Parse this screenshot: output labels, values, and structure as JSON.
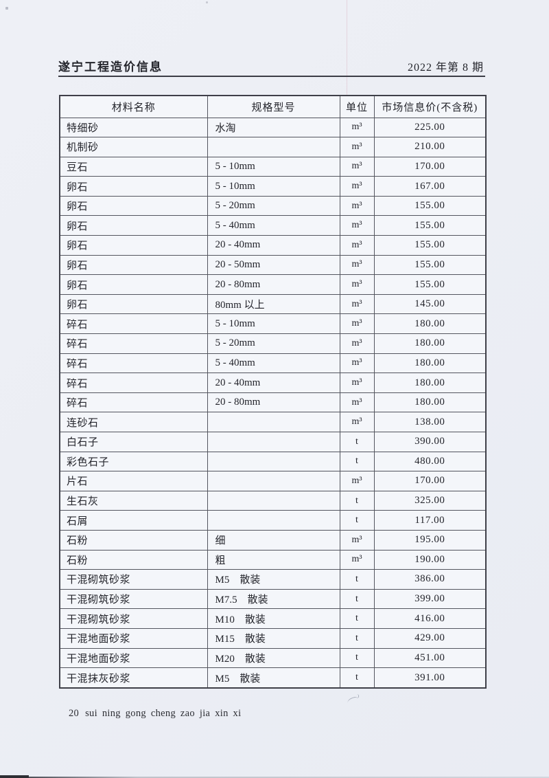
{
  "page": {
    "header_left": "遂宁工程造价信息",
    "header_right": "2022 年第 8 期",
    "page_number": "20",
    "footer_pinyin": "sui ning gong cheng zao jia xin xi"
  },
  "colors": {
    "paper": "#eceef4",
    "ink": "#23242b",
    "table_line": "#53555e"
  },
  "table": {
    "columns": [
      "材料名称",
      "规格型号",
      "单位",
      "市场信息价(不含税)"
    ],
    "rows": [
      {
        "name": "特细砂",
        "spec": "水淘",
        "unit": "m³",
        "price": "225.00"
      },
      {
        "name": "机制砂",
        "spec": "",
        "unit": "m³",
        "price": "210.00"
      },
      {
        "name": "豆石",
        "spec": "5 - 10mm",
        "unit": "m³",
        "price": "170.00"
      },
      {
        "name": "卵石",
        "spec": "5 - 10mm",
        "unit": "m³",
        "price": "167.00"
      },
      {
        "name": "卵石",
        "spec": "5 - 20mm",
        "unit": "m³",
        "price": "155.00"
      },
      {
        "name": "卵石",
        "spec": "5 - 40mm",
        "unit": "m³",
        "price": "155.00"
      },
      {
        "name": "卵石",
        "spec": "20 - 40mm",
        "unit": "m³",
        "price": "155.00"
      },
      {
        "name": "卵石",
        "spec": "20 - 50mm",
        "unit": "m³",
        "price": "155.00"
      },
      {
        "name": "卵石",
        "spec": "20 - 80mm",
        "unit": "m³",
        "price": "155.00"
      },
      {
        "name": "卵石",
        "spec": "80mm 以上",
        "unit": "m³",
        "price": "145.00"
      },
      {
        "name": "碎石",
        "spec": "5 - 10mm",
        "unit": "m³",
        "price": "180.00"
      },
      {
        "name": "碎石",
        "spec": "5 - 20mm",
        "unit": "m³",
        "price": "180.00"
      },
      {
        "name": "碎石",
        "spec": "5 - 40mm",
        "unit": "m³",
        "price": "180.00"
      },
      {
        "name": "碎石",
        "spec": "20 - 40mm",
        "unit": "m³",
        "price": "180.00"
      },
      {
        "name": "碎石",
        "spec": "20 - 80mm",
        "unit": "m³",
        "price": "180.00"
      },
      {
        "name": "连砂石",
        "spec": "",
        "unit": "m³",
        "price": "138.00"
      },
      {
        "name": "白石子",
        "spec": "",
        "unit": "t",
        "price": "390.00"
      },
      {
        "name": "彩色石子",
        "spec": "",
        "unit": "t",
        "price": "480.00"
      },
      {
        "name": "片石",
        "spec": "",
        "unit": "m³",
        "price": "170.00"
      },
      {
        "name": "生石灰",
        "spec": "",
        "unit": "t",
        "price": "325.00"
      },
      {
        "name": "石屑",
        "spec": "",
        "unit": "t",
        "price": "117.00"
      },
      {
        "name": "石粉",
        "spec": "细",
        "unit": "m³",
        "price": "195.00"
      },
      {
        "name": "石粉",
        "spec": "粗",
        "unit": "m³",
        "price": "190.00"
      },
      {
        "name": "干混砌筑砂浆",
        "spec": "M5　散装",
        "unit": "t",
        "price": "386.00"
      },
      {
        "name": "干混砌筑砂浆",
        "spec": "M7.5　散装",
        "unit": "t",
        "price": "399.00"
      },
      {
        "name": "干混砌筑砂浆",
        "spec": "M10　散装",
        "unit": "t",
        "price": "416.00"
      },
      {
        "name": "干混地面砂浆",
        "spec": "M15　散装",
        "unit": "t",
        "price": "429.00"
      },
      {
        "name": "干混地面砂浆",
        "spec": "M20　散装",
        "unit": "t",
        "price": "451.00"
      },
      {
        "name": "干混抹灰砂浆",
        "spec": "M5　散装",
        "unit": "t",
        "price": "391.00"
      }
    ]
  }
}
